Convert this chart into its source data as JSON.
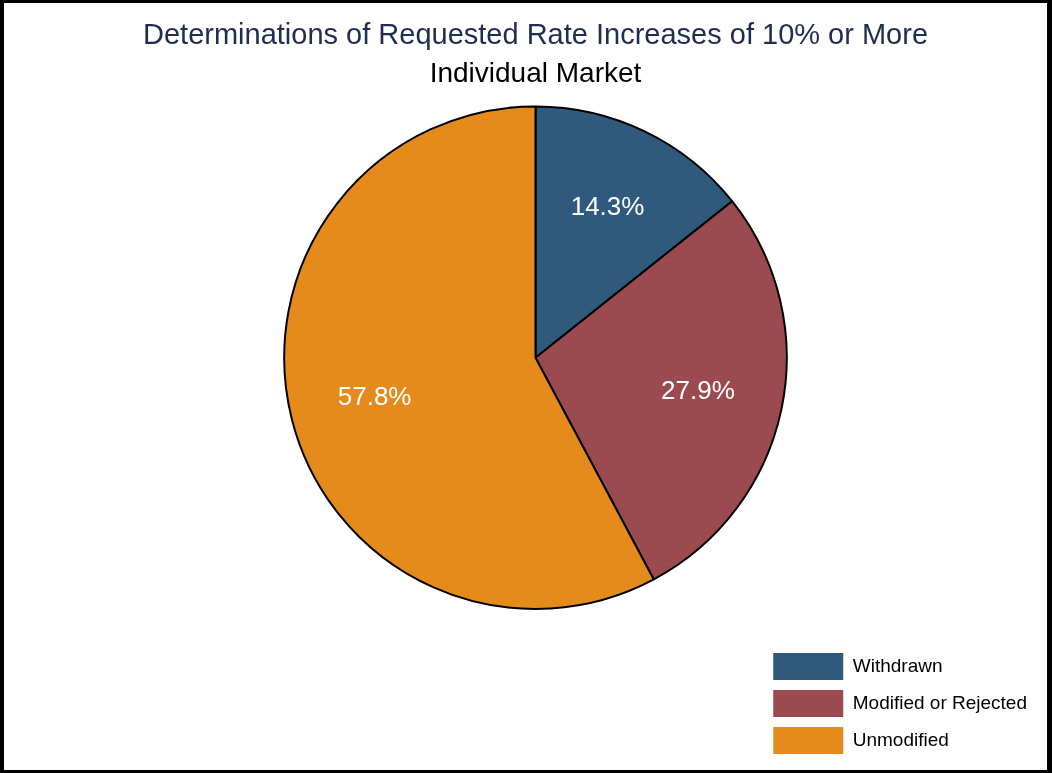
{
  "chart_data": {
    "type": "pie",
    "title": "Determinations of Requested Rate Increases of 10% or More",
    "subtitle": "Individual Market",
    "categories": [
      "Withdrawn",
      "Modified or Rejected",
      "Unmodified"
    ],
    "values": [
      14.3,
      27.9,
      57.8
    ],
    "colors": [
      "#2f5a7e",
      "#9b4a50",
      "#e58b1c"
    ],
    "value_labels": [
      "14.3%",
      "27.9%",
      "57.8%"
    ],
    "legend": "bottom right"
  }
}
